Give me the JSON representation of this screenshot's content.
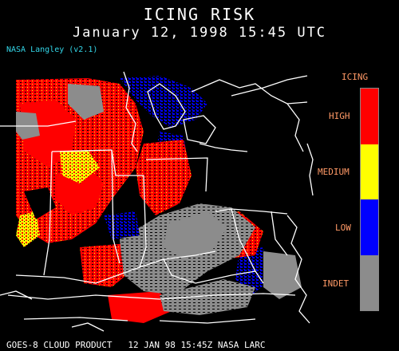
{
  "title": "ICING RISK",
  "datetime": "January 12, 1998 15:45 UTC",
  "credit": "NASA Langley (v2.1)",
  "footer": "GOES-8 CLOUD PRODUCT   12 JAN 98 15:45Z NASA LARC",
  "legend": {
    "title": "ICING",
    "items": [
      {
        "label": "HIGH",
        "color": "#ff0000"
      },
      {
        "label": "MEDIUM",
        "color": "#ffff00"
      },
      {
        "label": "LOW",
        "color": "#0000ff"
      },
      {
        "label": "INDET",
        "color": "#8c8c8c"
      }
    ]
  },
  "colors": {
    "background": "#000000",
    "boundaries": "#ffffff",
    "credit": "#33d6e8",
    "legend_text": "#ff9966"
  }
}
